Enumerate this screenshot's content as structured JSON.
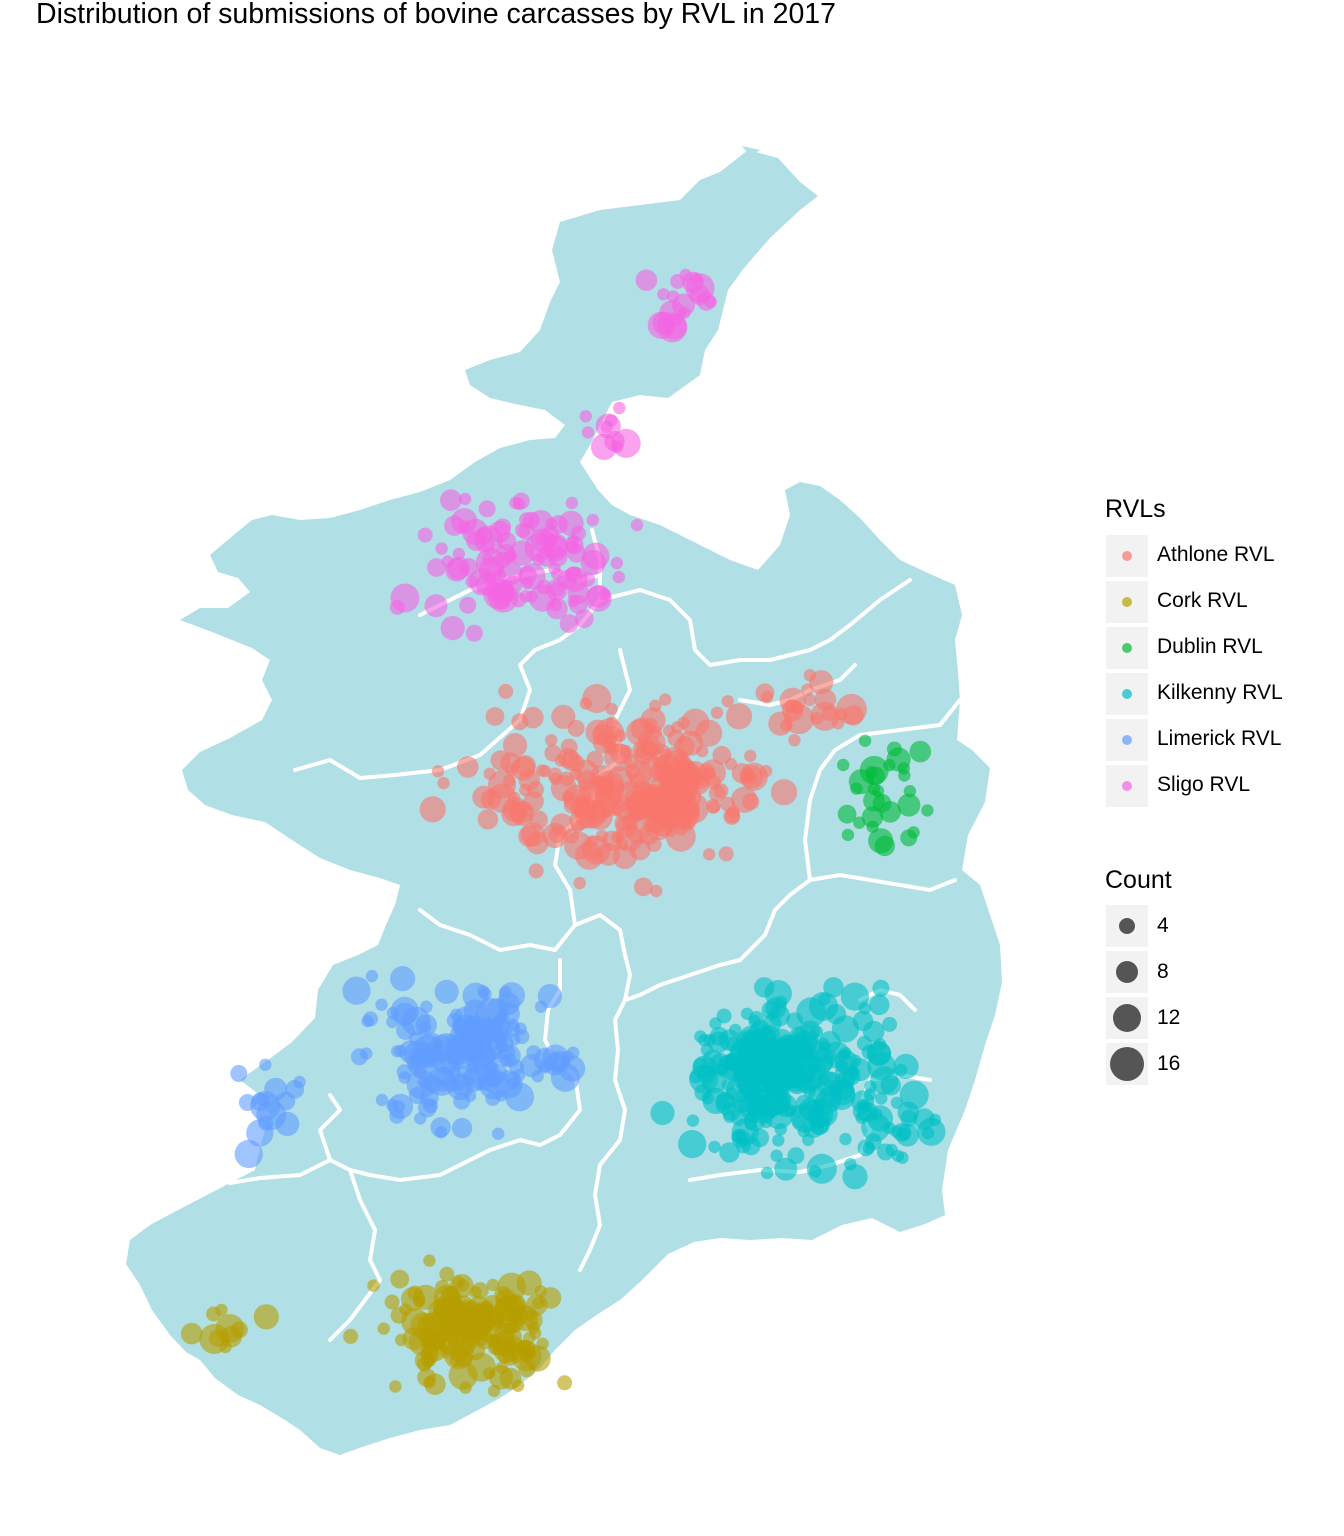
{
  "title": "Distribution of submissions of bovine carcasses by RVL in 2017",
  "legend": {
    "color_title": "RVLs",
    "size_title": "Count",
    "rvls": [
      {
        "label": "Athlone RVL",
        "color": "#F8766D"
      },
      {
        "label": "Cork RVL",
        "color": "#B79F00"
      },
      {
        "label": "Dublin RVL",
        "color": "#00BA38"
      },
      {
        "label": "Kilkenny RVL",
        "color": "#00BFC4"
      },
      {
        "label": "Limerick RVL",
        "color": "#619CFF"
      },
      {
        "label": "Sligo RVL",
        "color": "#F564E3"
      }
    ],
    "sizes": [
      "4",
      "8",
      "12",
      "16"
    ]
  },
  "map_style": {
    "land_color": "#b0dfe5",
    "border_color": "#ffffff",
    "point_alpha": 0.6
  }
}
